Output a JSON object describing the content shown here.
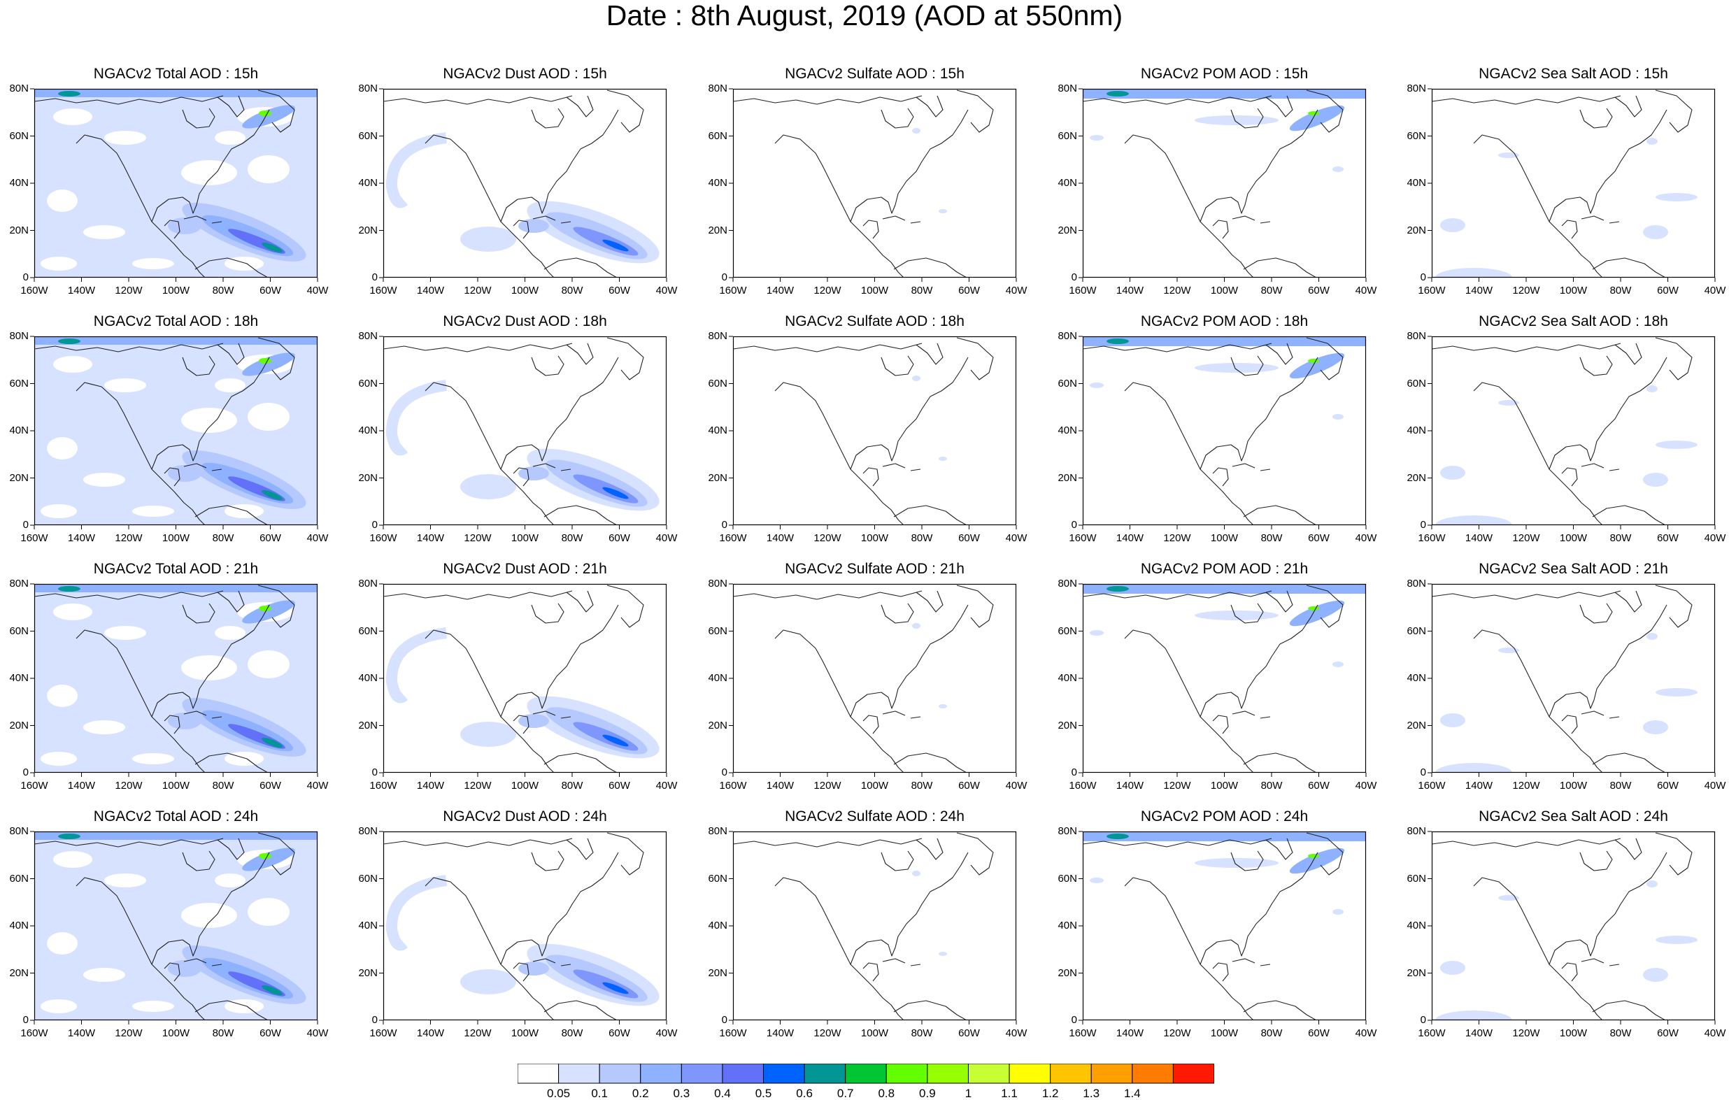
{
  "title": "Date : 8th August, 2019 (AOD at 550nm)",
  "panel_titles": [
    [
      "NGACv2 Total AOD : 15h",
      "NGACv2 Dust AOD : 15h",
      "NGACv2 Sulfate AOD : 15h",
      "NGACv2 POM AOD : 15h",
      "NGACv2 Sea Salt AOD : 15h"
    ],
    [
      "NGACv2 Total AOD : 18h",
      "NGACv2 Dust AOD : 18h",
      "NGACv2 Sulfate AOD : 18h",
      "NGACv2 POM AOD : 18h",
      "NGACv2 Sea Salt AOD : 18h"
    ],
    [
      "NGACv2 Total AOD : 21h",
      "NGACv2 Dust AOD : 21h",
      "NGACv2 Sulfate AOD : 21h",
      "NGACv2 POM AOD : 21h",
      "NGACv2 Sea Salt AOD : 21h"
    ],
    [
      "NGACv2 Total AOD : 24h",
      "NGACv2 Dust AOD : 24h",
      "NGACv2 Sulfate AOD : 24h",
      "NGACv2 POM AOD : 24h",
      "NGACv2 Sea Salt  AOD : 24h"
    ]
  ],
  "lon_ticks": [
    "160W",
    "140W",
    "120W",
    "100W",
    "80W",
    "60W",
    "40W"
  ],
  "lat_ticks": [
    "80N",
    "60N",
    "40N",
    "20N",
    "0"
  ],
  "colorbar": {
    "colors": [
      "#ffffff",
      "#d6e2ff",
      "#b5c9ff",
      "#8eb2ff",
      "#7f96ff",
      "#6370f8",
      "#0063ff",
      "#009696",
      "#00c633",
      "#63ff00",
      "#96ff00",
      "#c6ff33",
      "#ffff00",
      "#ffc600",
      "#ffa000",
      "#ff7c00",
      "#ff1900"
    ],
    "labels": [
      "0.05",
      "0.1",
      "0.2",
      "0.3",
      "0.4",
      "0.5",
      "0.6",
      "0.7",
      "0.8",
      "0.9",
      "1",
      "1.1",
      "1.2",
      "1.3",
      "1.4"
    ]
  }
}
